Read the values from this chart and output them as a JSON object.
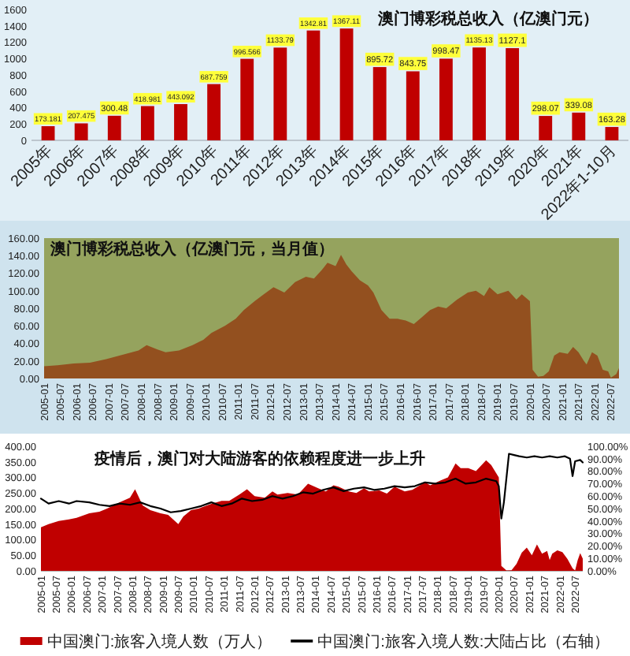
{
  "chart_data": [
    {
      "type": "bar",
      "title": "澳门博彩税总收入（亿澳门元）",
      "categories": [
        "2005年",
        "2006年",
        "2007年",
        "2008年",
        "2009年",
        "2010年",
        "2011年",
        "2012年",
        "2013年",
        "2014年",
        "2015年",
        "2016年",
        "2017年",
        "2018年",
        "2019年",
        "2020年",
        "2021年",
        "2022年1-10月"
      ],
      "values": [
        173.181,
        207.475,
        300.48,
        418.981,
        443.092,
        687.759,
        996.566,
        1133.79,
        1342.81,
        1367.11,
        895.72,
        843.75,
        998.47,
        1135.13,
        1127.1,
        298.07,
        339.08,
        163.28
      ],
      "color": "#c00000",
      "ylim": [
        0,
        1600
      ],
      "yticks": [
        0,
        200,
        400,
        600,
        800,
        1000,
        1200,
        1400,
        1600
      ],
      "data_labels": true
    },
    {
      "type": "area",
      "title": "澳门博彩税总收入（亿澳门元，当月值）",
      "x": [
        "2005-01",
        "2005-06",
        "2005-12",
        "2006-06",
        "2006-12",
        "2007-06",
        "2007-12",
        "2008-03",
        "2008-07",
        "2008-10",
        "2009-03",
        "2009-08",
        "2009-12",
        "2010-03",
        "2010-08",
        "2010-12",
        "2011-03",
        "2011-07",
        "2011-10",
        "2012-02",
        "2012-06",
        "2012-10",
        "2013-02",
        "2013-05",
        "2013-08",
        "2013-10",
        "2014-01",
        "2014-03",
        "2014-05",
        "2014-07",
        "2014-10",
        "2015-01",
        "2015-03",
        "2015-06",
        "2015-09",
        "2015-12",
        "2016-03",
        "2016-06",
        "2016-09",
        "2016-12",
        "2017-03",
        "2017-06",
        "2017-10",
        "2018-02",
        "2018-05",
        "2018-08",
        "2018-10",
        "2019-01",
        "2019-05",
        "2019-08",
        "2019-10",
        "2020-01",
        "2020-02",
        "2020-04",
        "2020-06",
        "2020-08",
        "2020-10",
        "2020-12",
        "2021-03",
        "2021-05",
        "2021-07",
        "2021-09",
        "2021-10",
        "2021-12",
        "2022-02",
        "2022-04",
        "2022-06",
        "2022-07",
        "2022-09",
        "2022-10"
      ],
      "values": [
        14,
        15,
        17,
        18,
        22,
        27,
        32,
        38,
        33,
        30,
        32,
        38,
        44,
        52,
        60,
        68,
        78,
        88,
        95,
        104,
        98,
        110,
        116,
        114,
        124,
        132,
        128,
        141,
        130,
        122,
        112,
        106,
        98,
        78,
        68,
        68,
        66,
        62,
        70,
        78,
        82,
        80,
        90,
        98,
        100,
        94,
        104,
        96,
        100,
        90,
        96,
        88,
        10,
        2,
        3,
        8,
        26,
        30,
        28,
        36,
        30,
        20,
        16,
        30,
        26,
        10,
        8,
        1,
        5,
        12
      ],
      "color": "#93501f",
      "xlim": [
        "2005-01",
        "2022-10"
      ],
      "xticks": [
        "2005-01",
        "2005-07",
        "2006-01",
        "2006-07",
        "2007-01",
        "2007-07",
        "2008-01",
        "2008-07",
        "2009-01",
        "2009-07",
        "2010-01",
        "2010-07",
        "2011-01",
        "2011-07",
        "2012-01",
        "2012-07",
        "2013-01",
        "2013-07",
        "2014-01",
        "2014-07",
        "2015-01",
        "2015-07",
        "2016-01",
        "2016-07",
        "2017-01",
        "2017-07",
        "2018-01",
        "2018-07",
        "2019-01",
        "2019-07",
        "2020-01",
        "2020-07",
        "2021-01",
        "2021-07",
        "2022-01",
        "2022-07"
      ],
      "ylim": [
        0,
        160
      ],
      "yticks": [
        {
          "value": 0,
          "label": "0.00"
        },
        {
          "value": 20,
          "label": "20.00"
        },
        {
          "value": 40,
          "label": "40.00"
        },
        {
          "value": 60,
          "label": "60.00"
        },
        {
          "value": 80,
          "label": "80.00"
        },
        {
          "value": 100,
          "label": "100.00"
        },
        {
          "value": 120,
          "label": "120.00"
        },
        {
          "value": 140,
          "label": "140.00"
        },
        {
          "value": 160,
          "label": "160.00"
        }
      ]
    },
    {
      "type": "area",
      "title": "疫情后，澳门对大陆游客的依赖程度进一步上升",
      "series": [
        {
          "name": "中国澳门:旅客入境人数（万人）",
          "color": "#c00000",
          "x": [
            "2005-01",
            "2005-04",
            "2005-08",
            "2005-12",
            "2006-03",
            "2006-08",
            "2006-12",
            "2007-03",
            "2007-08",
            "2007-12",
            "2008-02",
            "2008-05",
            "2008-08",
            "2008-12",
            "2009-03",
            "2009-07",
            "2009-09",
            "2009-12",
            "2010-03",
            "2010-08",
            "2010-12",
            "2011-03",
            "2011-07",
            "2011-10",
            "2012-01",
            "2012-05",
            "2012-08",
            "2012-10",
            "2013-02",
            "2013-06",
            "2013-10",
            "2014-02",
            "2014-05",
            "2014-08",
            "2014-10",
            "2015-02",
            "2015-05",
            "2015-08",
            "2015-10",
            "2016-02",
            "2016-05",
            "2016-08",
            "2016-12",
            "2017-03",
            "2017-08",
            "2017-10",
            "2018-02",
            "2018-05",
            "2018-08",
            "2018-10",
            "2019-01",
            "2019-04",
            "2019-08",
            "2019-10",
            "2020-01",
            "2020-02",
            "2020-04",
            "2020-06",
            "2020-08",
            "2020-10",
            "2020-12",
            "2021-02",
            "2021-04",
            "2021-06",
            "2021-08",
            "2021-09",
            "2021-10",
            "2021-12",
            "2022-02",
            "2022-04",
            "2022-06",
            "2022-07",
            "2022-08",
            "2022-09",
            "2022-10"
          ],
          "values": [
            140,
            150,
            160,
            165,
            170,
            185,
            190,
            200,
            220,
            235,
            262,
            210,
            195,
            185,
            180,
            150,
            175,
            195,
            200,
            215,
            225,
            225,
            245,
            262,
            240,
            235,
            255,
            245,
            250,
            245,
            280,
            265,
            255,
            275,
            270,
            255,
            250,
            265,
            255,
            258,
            248,
            270,
            255,
            260,
            285,
            275,
            290,
            300,
            345,
            330,
            330,
            320,
            355,
            340,
            300,
            16,
            1,
            2,
            23,
            58,
            75,
            50,
            85,
            55,
            64,
            35,
            55,
            66,
            60,
            38,
            8,
            1,
            34,
            57,
            39
          ]
        },
        {
          "name": "中国澳门:旅客入境人数:大陆占比（右轴）",
          "type": "line",
          "axis": "y2",
          "color": "#000000",
          "x": [
            "2005-01",
            "2005-04",
            "2005-08",
            "2005-12",
            "2006-03",
            "2006-08",
            "2006-12",
            "2007-04",
            "2007-08",
            "2007-12",
            "2008-04",
            "2008-08",
            "2008-12",
            "2009-04",
            "2009-08",
            "2009-12",
            "2010-04",
            "2010-08",
            "2010-12",
            "2011-04",
            "2011-08",
            "2011-12",
            "2012-04",
            "2012-08",
            "2012-12",
            "2013-04",
            "2013-08",
            "2013-12",
            "2014-04",
            "2014-08",
            "2014-12",
            "2015-04",
            "2015-08",
            "2015-12",
            "2016-04",
            "2016-08",
            "2016-12",
            "2017-04",
            "2017-08",
            "2017-12",
            "2018-04",
            "2018-08",
            "2018-12",
            "2019-04",
            "2019-08",
            "2019-12",
            "2020-01",
            "2020-02",
            "2020-03",
            "2020-05",
            "2020-07",
            "2020-09",
            "2020-12",
            "2021-03",
            "2021-06",
            "2021-09",
            "2021-12",
            "2022-03",
            "2022-05",
            "2022-06",
            "2022-07",
            "2022-09",
            "2022-10"
          ],
          "values": [
            58,
            54,
            56,
            54,
            56,
            55,
            53,
            52,
            54,
            53,
            55,
            52,
            50,
            47,
            48,
            50,
            52,
            55,
            52,
            54,
            58,
            56,
            57,
            60,
            58,
            60,
            63,
            62,
            65,
            67,
            64,
            66,
            67,
            65,
            66,
            68,
            67,
            68,
            71,
            70,
            71,
            74,
            70,
            71,
            74,
            72,
            68,
            42,
            55,
            94,
            93,
            92,
            91,
            92,
            91,
            92,
            91,
            92,
            90,
            76,
            88,
            89,
            87
          ]
        }
      ],
      "xlim": [
        "2005-01",
        "2022-10"
      ],
      "xticks": [
        "2005-01",
        "2005-07",
        "2006-01",
        "2006-07",
        "2007-01",
        "2007-07",
        "2008-01",
        "2008-07",
        "2009-01",
        "2009-07",
        "2010-01",
        "2010-07",
        "2011-01",
        "2011-07",
        "2012-01",
        "2012-07",
        "2013-01",
        "2013-07",
        "2014-01",
        "2014-07",
        "2015-01",
        "2015-07",
        "2016-01",
        "2016-07",
        "2017-01",
        "2017-07",
        "2018-01",
        "2018-07",
        "2019-01",
        "2019-07",
        "2020-01",
        "2020-07",
        "2021-01",
        "2021-07",
        "2022-01",
        "2022-07"
      ],
      "ylim": [
        0,
        400
      ],
      "yticks": [
        {
          "value": 0,
          "label": "0.00"
        },
        {
          "value": 50,
          "label": "50.00"
        },
        {
          "value": 100,
          "label": "100.00"
        },
        {
          "value": 150,
          "label": "150.00"
        },
        {
          "value": 200,
          "label": "200.00"
        },
        {
          "value": 250,
          "label": "250.00"
        },
        {
          "value": 300,
          "label": "300.00"
        },
        {
          "value": 350,
          "label": "350.00"
        },
        {
          "value": 400,
          "label": "400.00"
        }
      ],
      "y2lim": [
        0,
        100
      ],
      "y2ticks": [
        {
          "value": 0,
          "label": "0.00%"
        },
        {
          "value": 10,
          "label": "10.00%"
        },
        {
          "value": 20,
          "label": "20.00%"
        },
        {
          "value": 30,
          "label": "30.00%"
        },
        {
          "value": 40,
          "label": "40.00%"
        },
        {
          "value": 50,
          "label": "50.00%"
        },
        {
          "value": 60,
          "label": "60.00%"
        },
        {
          "value": 70,
          "label": "70.00%"
        },
        {
          "value": 80,
          "label": "80.00%"
        },
        {
          "value": 90,
          "label": "90.00%"
        },
        {
          "value": 100,
          "label": "100.00%"
        }
      ],
      "legend": "bottom"
    }
  ]
}
